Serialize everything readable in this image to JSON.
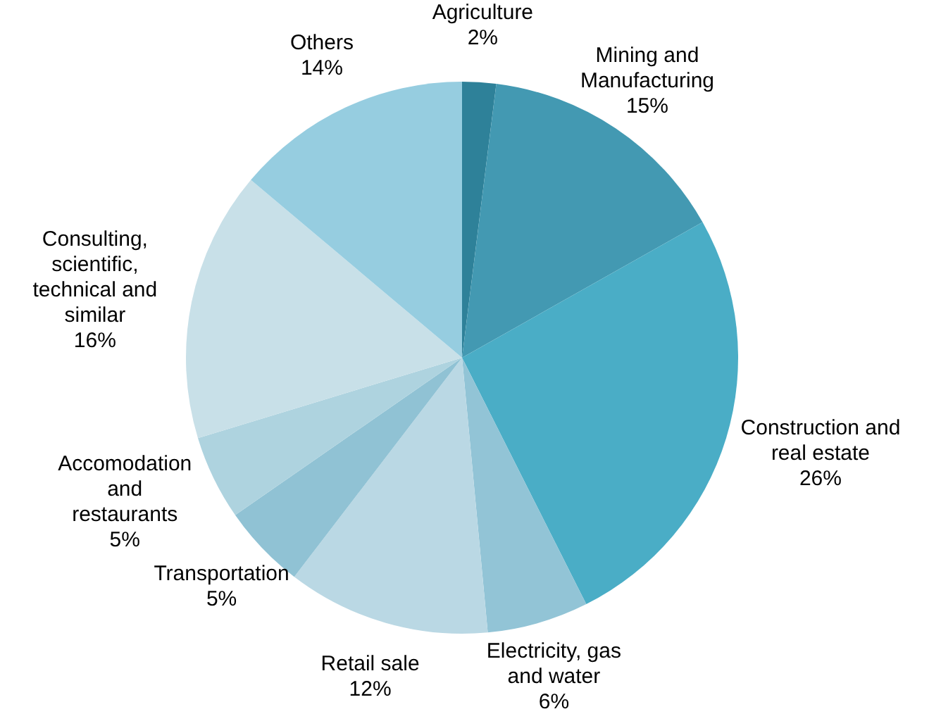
{
  "chart_data": {
    "type": "pie",
    "categories": [
      "Agriculture",
      "Mining and Manufacturing",
      "Construction and real estate",
      "Electricity, gas and water",
      "Retail sale",
      "Transportation",
      "Accomodation and restaurants",
      "Consulting, scientific, technical and similar",
      "Others"
    ],
    "values": [
      2,
      15,
      26,
      6,
      12,
      5,
      5,
      16,
      14
    ],
    "colors": [
      "#2e8199",
      "#4399b2",
      "#4aadc6",
      "#92c4d6",
      "#bad8e4",
      "#90c2d4",
      "#aed3df",
      "#c8e0e8",
      "#96cde0"
    ],
    "value_labels": [
      "2%",
      "15%",
      "26%",
      "6%",
      "12%",
      "5%",
      "5%",
      "16%",
      "14%"
    ]
  }
}
